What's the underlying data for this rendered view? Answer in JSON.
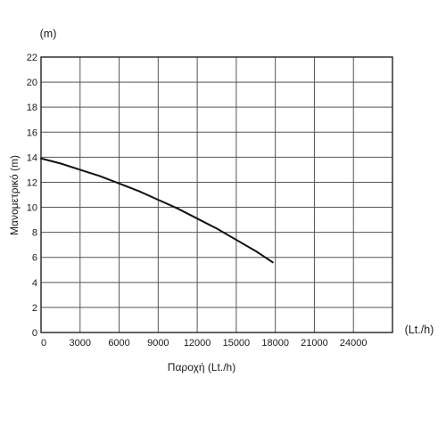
{
  "chart_data": {
    "type": "line",
    "xlabel": "Παροχή (Lt./h)",
    "ylabel": "Μανομετρικό (m)",
    "y_unit_label": "(m)",
    "x_unit_label": "(Lt./h)",
    "xlim": [
      0,
      27000
    ],
    "ylim": [
      0,
      22
    ],
    "x_ticks": [
      0,
      3000,
      6000,
      9000,
      12000,
      15000,
      18000,
      21000,
      24000
    ],
    "y_ticks": [
      0,
      2,
      4,
      6,
      8,
      10,
      12,
      14,
      16,
      18,
      20,
      22
    ],
    "grid": true,
    "colors": {
      "grid": "#555555",
      "curve": "#111111",
      "frame": "#222222"
    },
    "series": [
      {
        "x": [
          0,
          1500,
          3000,
          4500,
          6000,
          7500,
          9000,
          10500,
          12000,
          13500,
          15000,
          16500,
          17800
        ],
        "y": [
          13.9,
          13.5,
          13.0,
          12.5,
          11.9,
          11.3,
          10.6,
          9.9,
          9.1,
          8.3,
          7.4,
          6.5,
          5.6
        ]
      }
    ]
  }
}
